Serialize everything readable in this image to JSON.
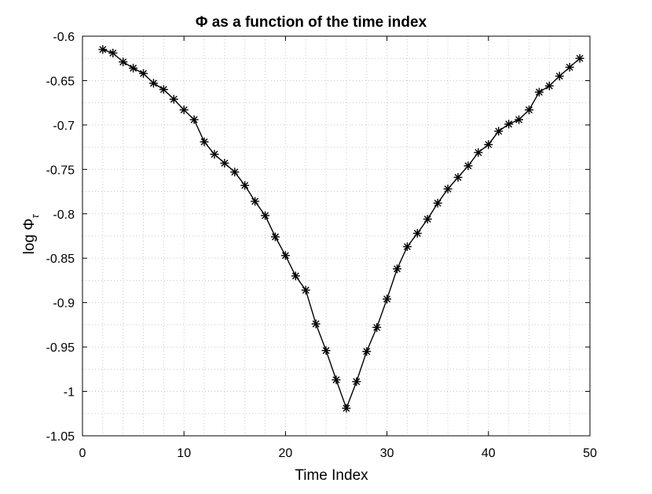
{
  "chart_data": {
    "type": "line",
    "title": "Φ as a function of the time index",
    "xlabel": "Time Index",
    "ylabel": "log  Φ",
    "ylabel_subscript": "τ",
    "xlim": [
      0,
      50
    ],
    "ylim": [
      -1.05,
      -0.6
    ],
    "x_ticks": [
      0,
      10,
      20,
      30,
      40,
      50
    ],
    "x_tick_labels": [
      "0",
      "10",
      "20",
      "30",
      "40",
      "50"
    ],
    "y_ticks": [
      -1.05,
      -1,
      -0.95,
      -0.9,
      -0.85,
      -0.8,
      -0.75,
      -0.7,
      -0.65,
      -0.6
    ],
    "y_tick_labels": [
      "-1.05",
      "-1",
      "-0.95",
      "-0.9",
      "-0.85",
      "-0.8",
      "-0.75",
      "-0.7",
      "-0.65",
      "-0.6"
    ],
    "grid": "minor dotted",
    "marker": "asterisk",
    "line_color": "#000000",
    "series": [
      {
        "x": [
          2,
          3,
          4,
          5,
          6,
          7,
          8,
          9,
          10,
          11,
          12,
          13,
          14,
          15,
          16,
          17,
          18,
          19,
          20,
          21,
          22,
          23,
          24,
          25,
          26,
          27,
          28,
          29,
          30,
          31,
          32,
          33,
          34,
          35,
          36,
          37,
          38,
          39,
          40,
          41,
          42,
          43,
          44,
          45,
          46,
          47,
          48,
          49
        ],
        "y": [
          -0.615,
          -0.619,
          -0.629,
          -0.636,
          -0.642,
          -0.653,
          -0.66,
          -0.671,
          -0.683,
          -0.694,
          -0.719,
          -0.733,
          -0.743,
          -0.753,
          -0.768,
          -0.786,
          -0.802,
          -0.826,
          -0.847,
          -0.87,
          -0.886,
          -0.924,
          -0.954,
          -0.987,
          -1.019,
          -0.989,
          -0.955,
          -0.928,
          -0.896,
          -0.862,
          -0.837,
          -0.822,
          -0.806,
          -0.788,
          -0.772,
          -0.759,
          -0.746,
          -0.731,
          -0.722,
          -0.707,
          -0.699,
          -0.694,
          -0.683,
          -0.663,
          -0.656,
          -0.645,
          -0.635,
          -0.625
        ]
      }
    ]
  }
}
